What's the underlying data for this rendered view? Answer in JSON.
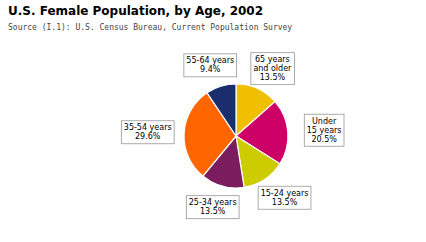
{
  "chart_data": {
    "type": "pie",
    "title": "U.S. Female Population, by Age, 2002",
    "subtitle": "Source (I.1): U.S. Census Bureau, Current Population Survey",
    "categories": [
      "65 years\nand older",
      "Under\n15 years",
      "15-24 years",
      "25-34 years",
      "35-54 years",
      "55-64 years"
    ],
    "values": [
      13.5,
      20.5,
      13.5,
      13.5,
      29.6,
      9.4
    ],
    "value_labels": [
      "13.5%",
      "20.5%",
      "13.5%",
      "13.5%",
      "29.6%",
      "9.4%"
    ],
    "colors": [
      "#F0C000",
      "#CC0066",
      "#CCCC00",
      "#7B1C5E",
      "#FF6600",
      "#1A2E6E"
    ],
    "data_labels": true
  }
}
